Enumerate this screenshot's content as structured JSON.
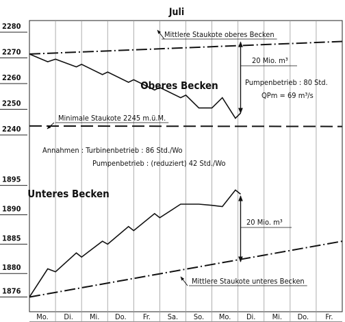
{
  "chart_data": [
    {
      "type": "line",
      "title": "Juli",
      "label": "Oberes Becken",
      "xlim": [
        0,
        12
      ],
      "ylim": [
        2240,
        2280
      ],
      "yticks": [
        2240,
        2250,
        2260,
        2270,
        2280
      ],
      "series": [
        {
          "name": "Mittlere Staukote oberes Becken",
          "style": "dashdot",
          "color": "#111",
          "x": [
            0,
            12
          ],
          "values": [
            2271.5,
            2276.4
          ]
        },
        {
          "name": "Minimale Staukote 2245 m.ü.M.",
          "style": "dashed",
          "color": "#111",
          "x": [
            0,
            12
          ],
          "values": [
            2243.5,
            2243.3
          ]
        },
        {
          "style": "solid",
          "color": "#111",
          "x": [
            0,
            0.7,
            1.0,
            1.8,
            2.0,
            2.8,
            3.0,
            3.8,
            4.0,
            4.8,
            5.0,
            5.8,
            6.0,
            6.5,
            7.0,
            7.4,
            7.9,
            8.1
          ],
          "values": [
            2271.5,
            2268.5,
            2269.5,
            2266.5,
            2267.5,
            2263.5,
            2264.5,
            2260.5,
            2261.5,
            2257.5,
            2258.5,
            2254.5,
            2255.5,
            2250.5,
            2250.5,
            2254.5,
            2246.5,
            2248.5
          ]
        }
      ],
      "annotations": [
        {
          "text": "20 Mio. m³",
          "x": 8.1,
          "y": [
            2276.2,
            2248.5
          ]
        },
        {
          "text": "Pumpenbetrieb : 80 Std."
        },
        {
          "text": "QPm = 69 m³/s"
        },
        {
          "text": "Annahmen : Turbinenbetrieb : 86 Std./Wo"
        },
        {
          "text": "Pumpenbetrieb : (reduziert) 42 Std./Wo"
        }
      ]
    },
    {
      "type": "line",
      "label": "Unteres Becken",
      "categories": [
        "Mo.",
        "Di.",
        "Mi.",
        "Do.",
        "Fr.",
        "Sa.",
        "So.",
        "Mo.",
        "Di.",
        "Mi.",
        "Do.",
        "Fr."
      ],
      "xlim": [
        0,
        12
      ],
      "ylim": [
        1873.5,
        1896
      ],
      "yticks": [
        1876,
        1880,
        1885,
        1890,
        1895
      ],
      "series": [
        {
          "name": "Mittlere Staukote unteres Becken",
          "style": "dashdot",
          "color": "#111",
          "x": [
            0,
            12
          ],
          "values": [
            1876,
            1885.5
          ]
        },
        {
          "style": "solid",
          "color": "#111",
          "x": [
            0,
            0.7,
            1.0,
            1.8,
            2.0,
            2.8,
            3.0,
            3.8,
            4.0,
            4.8,
            5.0,
            5.8,
            6.0,
            6.5,
            7.0,
            7.4,
            7.9,
            8.1
          ],
          "values": [
            1876,
            1880.8,
            1880.3,
            1883.5,
            1882.8,
            1885.5,
            1885,
            1888,
            1887.3,
            1890.2,
            1889.5,
            1891.8,
            1891.8,
            1891.8,
            1891.6,
            1891.4,
            1894.2,
            1893.5
          ]
        }
      ],
      "annotations": [
        {
          "text": "20 Mio. m³",
          "x": 8.1,
          "y": [
            1893.2,
            1882
          ]
        }
      ]
    }
  ]
}
